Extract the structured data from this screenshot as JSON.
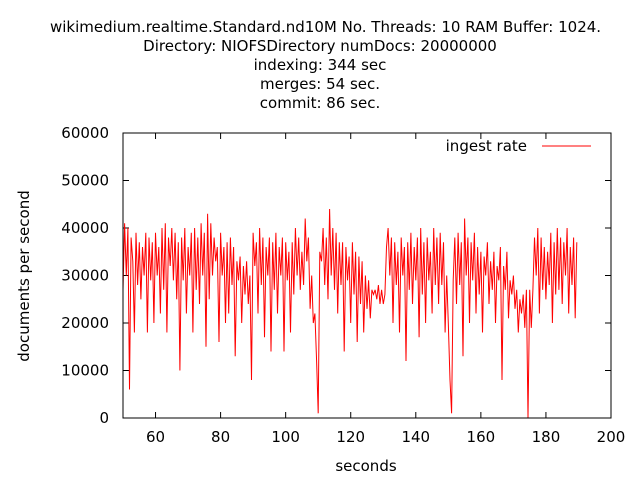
{
  "title_lines": [
    "wikimedium.realtime.Standard.nd10M No. Threads: 10 RAM Buffer: 1024.",
    "Directory: NIOFSDirectory numDocs: 20000000",
    "indexing: 344 sec",
    "merges: 54 sec.",
    "commit: 86 sec."
  ],
  "chart_data": {
    "type": "line",
    "xlabel": "seconds",
    "ylabel": "documents per second",
    "xlim": [
      50,
      200
    ],
    "ylim": [
      0,
      60000
    ],
    "xticks": [
      60,
      80,
      100,
      120,
      140,
      160,
      180,
      200
    ],
    "yticks": [
      0,
      10000,
      20000,
      30000,
      40000,
      50000,
      60000
    ],
    "xtick_labels": [
      "60",
      "80",
      "100",
      "120",
      "140",
      "160",
      "180",
      "200"
    ],
    "ytick_labels": [
      "0",
      "10000",
      "20000",
      "30000",
      "40000",
      "50000",
      "60000"
    ],
    "grid": false,
    "legend": {
      "position": "top-right",
      "entries": [
        "ingest rate"
      ]
    },
    "series": [
      {
        "name": "ingest rate",
        "color": "#ff0000",
        "x_start": 50,
        "x_step": 0.5,
        "values": [
          27000,
          41000,
          30000,
          40000,
          6000,
          38000,
          33000,
          18000,
          39000,
          28000,
          37000,
          25000,
          36000,
          30000,
          39000,
          18000,
          38000,
          29000,
          37000,
          20000,
          39000,
          30000,
          36000,
          22000,
          40000,
          27000,
          41000,
          18000,
          38000,
          32000,
          40000,
          29000,
          39000,
          25000,
          37000,
          10000,
          38000,
          29000,
          40000,
          22000,
          36000,
          30000,
          39000,
          18000,
          40000,
          27000,
          38000,
          24000,
          41000,
          30000,
          39000,
          15000,
          43000,
          25000,
          41000,
          30000,
          38000,
          33000,
          36000,
          16000,
          39000,
          30000,
          36000,
          20000,
          37000,
          22000,
          38000,
          28000,
          36000,
          13000,
          33000,
          29000,
          34000,
          20000,
          32000,
          26000,
          33000,
          24000,
          30000,
          8000,
          39000,
          32000,
          37000,
          22000,
          40000,
          28000,
          38000,
          17000,
          36000,
          30000,
          38000,
          14000,
          37000,
          27000,
          39000,
          22000,
          36000,
          30000,
          38000,
          14000,
          37000,
          29000,
          35000,
          18000,
          37000,
          26000,
          40000,
          30000,
          38000,
          27000,
          35000,
          28000,
          42000,
          33000,
          38000,
          23000,
          30000,
          20000,
          22000,
          12000,
          1000,
          35000,
          33000,
          40000,
          28000,
          38000,
          25000,
          44000,
          30000,
          40000,
          27000,
          39000,
          22000,
          37000,
          28000,
          37000,
          14000,
          36000,
          29000,
          34000,
          20000,
          37000,
          26000,
          35000,
          16000,
          34000,
          24000,
          33000,
          18000,
          30000,
          23000,
          29000,
          21000,
          27000,
          26000,
          27000,
          25000,
          28000,
          24000,
          27000,
          24000,
          26000,
          36000,
          40000,
          30000,
          38000,
          20000,
          37000,
          28000,
          35000,
          18000,
          38000,
          30000,
          36000,
          12000,
          37000,
          27000,
          39000,
          24000,
          36000,
          29000,
          38000,
          17000,
          40000,
          26000,
          37000,
          20000,
          38000,
          29000,
          35000,
          22000,
          40000,
          28000,
          38000,
          24000,
          39000,
          28000,
          37000,
          18000,
          30000,
          20000,
          8000,
          1000,
          29000,
          38000,
          24000,
          39000,
          28000,
          37000,
          13000,
          42000,
          30000,
          38000,
          20000,
          37000,
          29000,
          39000,
          22000,
          36000,
          26000,
          35000,
          18000,
          34000,
          30000,
          37000,
          24000,
          33000,
          27000,
          35000,
          20000,
          32000,
          29000,
          36000,
          8000,
          32000,
          27000,
          35000,
          21000,
          29000,
          26000,
          30000,
          23000,
          27000,
          18000,
          25000,
          22000,
          26000,
          19000,
          27000,
          0,
          27000,
          19000,
          27000,
          38000,
          30000,
          40000,
          22000,
          38000,
          27000,
          36000,
          25000,
          35000,
          28000,
          39000,
          20000,
          37000,
          26000,
          40000,
          27000,
          38000,
          24000,
          37000,
          30000,
          40000,
          22000,
          36000,
          28000,
          38000,
          21000,
          37000
        ]
      }
    ]
  }
}
